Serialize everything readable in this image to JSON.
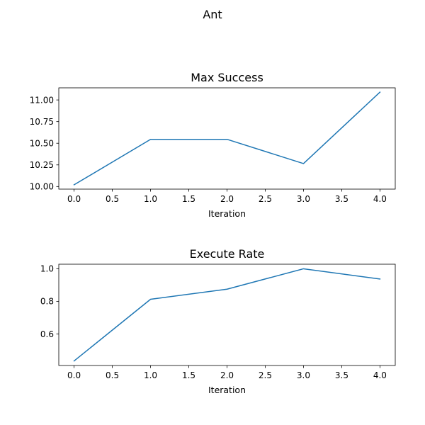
{
  "figure": {
    "suptitle": "Ant"
  },
  "chart_data": [
    {
      "type": "line",
      "title": "Max Success",
      "xlabel": "Iteration",
      "ylabel": "",
      "x": [
        0,
        1,
        2,
        3,
        4
      ],
      "series": [
        {
          "values": [
            10.02,
            10.545,
            10.545,
            10.265,
            11.09
          ],
          "color": "#1f77b4"
        }
      ],
      "xlim": [
        -0.2,
        4.2
      ],
      "ylim": [
        9.97,
        11.14
      ],
      "xticks": [
        0,
        0.5,
        1,
        1.5,
        2,
        2.5,
        3,
        3.5,
        4
      ],
      "xtick_labels": [
        "0.0",
        "0.5",
        "1.0",
        "1.5",
        "2.0",
        "2.5",
        "3.0",
        "3.5",
        "4.0"
      ],
      "yticks": [
        10.0,
        10.25,
        10.5,
        10.75,
        11.0
      ],
      "ytick_labels": [
        "10.00",
        "10.25",
        "10.50",
        "10.75",
        "11.00"
      ],
      "grid": false
    },
    {
      "type": "line",
      "title": "Execute Rate",
      "xlabel": "Iteration",
      "ylabel": "",
      "x": [
        0,
        1,
        2,
        3,
        4
      ],
      "series": [
        {
          "values": [
            0.435,
            0.813,
            0.875,
            1.0,
            0.937
          ],
          "color": "#1f77b4"
        }
      ],
      "xlim": [
        -0.2,
        4.2
      ],
      "ylim": [
        0.407,
        1.028
      ],
      "xticks": [
        0,
        0.5,
        1,
        1.5,
        2,
        2.5,
        3,
        3.5,
        4
      ],
      "xtick_labels": [
        "0.0",
        "0.5",
        "1.0",
        "1.5",
        "2.0",
        "2.5",
        "3.0",
        "3.5",
        "4.0"
      ],
      "yticks": [
        0.6,
        0.8,
        1.0
      ],
      "ytick_labels": [
        "0.6",
        "0.8",
        "1.0"
      ],
      "grid": false
    }
  ]
}
